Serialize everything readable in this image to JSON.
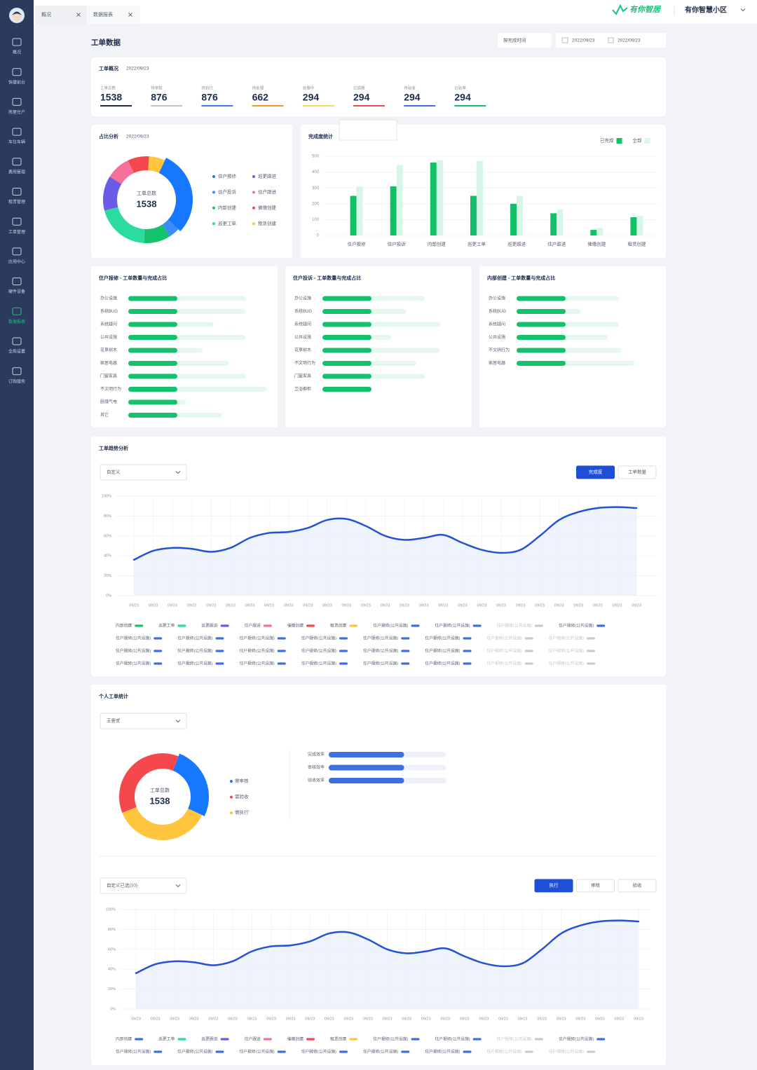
{
  "tabs": [
    "概况",
    "数据报表"
  ],
  "brand": {
    "logo": "有你智居",
    "community": "有你智慧小区"
  },
  "sidebar": {
    "items": [
      "概况",
      "快捷前台",
      "房屋住户",
      "车位车辆",
      "费用管理",
      "租赁管理",
      "工单管理",
      "应用中心",
      "硬件设备",
      "数据报表",
      "全局设置",
      "订购服务"
    ],
    "active": 9
  },
  "header": {
    "title": "工单数据",
    "filter": "按完成时间",
    "date_from": "2022/09/23",
    "date_to": "2022/09/23"
  },
  "overview": {
    "title": "工单概况",
    "date": "2022/09/23",
    "stats": [
      {
        "label": "工单总数",
        "value": 1538,
        "color": "#1f2d4d"
      },
      {
        "label": "待审核",
        "value": 876,
        "color": "#b8c4d6"
      },
      {
        "label": "待执行",
        "value": 876,
        "color": "#3d7cf0"
      },
      {
        "label": "待处理",
        "value": 662,
        "color": "#f59a23"
      },
      {
        "label": "处理中",
        "value": 294,
        "color": "#ffd666"
      },
      {
        "label": "已逾期",
        "value": 294,
        "color": "#f5484d"
      },
      {
        "label": "待验收",
        "value": 294,
        "color": "#3d6fe0"
      },
      {
        "label": "已验单",
        "value": 294,
        "color": "#13c26b"
      }
    ]
  },
  "share": {
    "title": "占比分析",
    "date": "2022/09/23",
    "center_label": "工单总数",
    "center_value": 1538,
    "chart": {
      "type": "donut",
      "categories": [
        "住户报修",
        "住户投诉",
        "内部创建",
        "巡更工单",
        "巡更跟进",
        "住户跟进",
        "催缴创建",
        "租赁创建"
      ],
      "values": [
        30,
        4,
        10,
        20,
        13,
        9,
        8,
        6
      ],
      "colors": [
        "#1677ff",
        "#3c8df5",
        "#14c26b",
        "#2bdba0",
        "#6b5ce7",
        "#f5719a",
        "#f5484d",
        "#ffc53d"
      ]
    }
  },
  "completion": {
    "type": "bar",
    "title": "完成度统计",
    "categories": [
      "住户报修",
      "住户投诉",
      "内部创建",
      "巡更工单",
      "巡更跟进",
      "住户跟进",
      "催缴创建",
      "租赁创建"
    ],
    "series": [
      {
        "name": "已完成",
        "color": "#12c067",
        "values": [
          250,
          310,
          460,
          250,
          200,
          140,
          35,
          115
        ]
      },
      {
        "name": "全部",
        "color": "#d8f6e7",
        "values": [
          310,
          445,
          475,
          470,
          250,
          165,
          50,
          125
        ]
      }
    ],
    "ylim": [
      0,
      500
    ],
    "yticks": [
      0,
      100,
      200,
      300,
      400,
      500
    ],
    "grid": true,
    "legend": "top-right"
  },
  "progress_panels": [
    {
      "type": "progress",
      "title": "住户报修 - 工单数量与完成占比",
      "xlim": [
        0,
        100
      ],
      "color": "#14c26b",
      "track_color": "#e6f8ee",
      "categories": [
        "办公设施",
        "系统BUG",
        "系统疑问",
        "公共设施",
        "花草树木",
        "家居电器",
        "门窗家具",
        "不文明行为",
        "厨煤气电",
        "其它"
      ],
      "completed": [
        35,
        35,
        35,
        35,
        35,
        35,
        35,
        35,
        35,
        35
      ],
      "total": [
        84,
        84,
        61,
        84,
        53,
        72,
        84,
        99,
        41,
        67
      ]
    },
    {
      "type": "progress",
      "title": "住户投诉 - 工单数量与完成占比",
      "xlim": [
        0,
        100
      ],
      "color": "#14c26b",
      "track_color": "#e6f8ee",
      "categories": [
        "办公设施",
        "系统BUG",
        "系统疑问",
        "公共设施",
        "花草树木",
        "不文明行为",
        "门窗家具",
        "卫浴橱柜"
      ],
      "completed": [
        35,
        35,
        35,
        35,
        35,
        35,
        35,
        35
      ],
      "total": [
        73,
        60,
        84,
        49,
        84,
        67,
        73,
        35
      ]
    },
    {
      "type": "progress",
      "title": "内部创建 - 工单数量与完成占比",
      "xlim": [
        0,
        100
      ],
      "color": "#14c26b",
      "track_color": "#e6f8ee",
      "categories": [
        "办公设施",
        "系统BUG",
        "系统疑问",
        "公共设施",
        "不文明行为",
        "家居电器"
      ],
      "completed": [
        35,
        35,
        35,
        35,
        35,
        35
      ],
      "total": [
        73,
        46,
        73,
        65,
        75,
        84
      ]
    }
  ],
  "trend": {
    "title": "工单趋势分析",
    "dropdown": "自定义",
    "buttons": [
      "完成度",
      "工单数量"
    ],
    "active_button": 0,
    "chart": {
      "type": "area",
      "color": "#2451d6",
      "fill": "#edf2fc",
      "categories": [
        "09/23",
        "09/23",
        "09/23",
        "09/23",
        "09/23",
        "09/23",
        "09/23",
        "09/23",
        "09/23",
        "09/23",
        "09/23",
        "09/23",
        "09/23",
        "09/23",
        "09/23",
        "09/23",
        "09/23",
        "09/23",
        "09/23",
        "09/23",
        "09/23",
        "09/23",
        "09/23",
        "09/23",
        "09/23",
        "09/23",
        "09/23"
      ],
      "values": [
        36,
        45,
        48,
        47,
        44,
        48,
        58,
        63,
        64,
        68,
        76,
        77,
        70,
        60,
        56,
        58,
        61,
        53,
        46,
        43,
        46,
        60,
        76,
        84,
        88,
        89,
        88
      ],
      "ylim": [
        0,
        100
      ],
      "yticks": [
        {
          "value": 0,
          "label": "0%"
        },
        {
          "value": 20,
          "label": "20%"
        },
        {
          "value": 40,
          "label": "40%"
        },
        {
          "value": 60,
          "label": "60%"
        },
        {
          "value": 80,
          "label": "80%"
        },
        {
          "value": 100,
          "label": "100%"
        }
      ],
      "grid": true
    },
    "legend": [
      [
        {
          "name": "内部创建",
          "color": "#14c26b"
        },
        {
          "name": "巡更工单",
          "color": "#2bdba0"
        },
        {
          "name": "巡更跟进",
          "color": "#6b5ce7"
        },
        {
          "name": "住户跟进",
          "color": "#f5719a"
        },
        {
          "name": "催缴创建",
          "color": "#f5484d"
        },
        {
          "name": "租赁创建",
          "color": "#ffc53d"
        },
        {
          "name": "住户报修(公共设施)",
          "color": "#3d6fe0"
        },
        {
          "name": "住户报修(公共设施)",
          "color": "#3d6fe0"
        },
        {
          "name": "住户报修(公共设施)",
          "color": "#c8cbd2",
          "hidden": true
        },
        {
          "name": "住户报修(公共设施)",
          "color": "#3d6fe0"
        }
      ],
      [
        {
          "name": "住户报修(公共设施)",
          "color": "#3d6fe0"
        },
        {
          "name": "住户报修(公共设施)",
          "color": "#3d6fe0"
        },
        {
          "name": "住户报修(公共设施)",
          "color": "#3d6fe0"
        },
        {
          "name": "住户报修(公共设施)",
          "color": "#3d6fe0"
        },
        {
          "name": "住户报修(公共设施)",
          "color": "#3d6fe0"
        },
        {
          "name": "住户报修(公共设施)",
          "color": "#3d6fe0"
        },
        {
          "name": "住户报修(公共设施)",
          "color": "#c8cbd2",
          "hidden": true
        },
        {
          "name": "住户报修(公共设施)",
          "color": "#c8cbd2",
          "hidden": true
        }
      ],
      [
        {
          "name": "住户报修(公共设施)",
          "color": "#3d6fe0"
        },
        {
          "name": "住户报修(公共设施)",
          "color": "#3d6fe0"
        },
        {
          "name": "住户报修(公共设施)",
          "color": "#3d6fe0"
        },
        {
          "name": "住户报修(公共设施)",
          "color": "#3d6fe0"
        },
        {
          "name": "住户报修(公共设施)",
          "color": "#3d6fe0"
        },
        {
          "name": "住户报修(公共设施)",
          "color": "#3d6fe0"
        },
        {
          "name": "住户报修(公共设施)",
          "color": "#c8cbd2",
          "hidden": true
        },
        {
          "name": "住户报修(公共设施)",
          "color": "#c8cbd2",
          "hidden": true
        }
      ],
      [
        {
          "name": "住户报修(公共设施)",
          "color": "#3d6fe0"
        },
        {
          "name": "住户报修(公共设施)",
          "color": "#3d6fe0"
        },
        {
          "name": "住户报修(公共设施)",
          "color": "#3d6fe0"
        },
        {
          "name": "住户报修(公共设施)",
          "color": "#3d6fe0"
        },
        {
          "name": "住户报修(公共设施)",
          "color": "#3d6fe0"
        },
        {
          "name": "住户报修(公共设施)",
          "color": "#3d6fe0"
        },
        {
          "name": "住户报修(公共设施)",
          "color": "#c8cbd2",
          "hidden": true
        },
        {
          "name": "住户报修(公共设施)",
          "color": "#c8cbd2",
          "hidden": true
        }
      ]
    ]
  },
  "personal": {
    "title": "个人工单统计",
    "dropdown": "王壹贰",
    "donut": {
      "type": "donut",
      "center_label": "工单总数",
      "center_value": 1538,
      "categories": [
        "需审核",
        "需验收",
        "需执行"
      ],
      "values": [
        26,
        37,
        37
      ],
      "colors": [
        "#1677ff",
        "#f5484d",
        "#ffc53d"
      ]
    },
    "efficiency": {
      "type": "progress",
      "categories": [
        "完成效率",
        "审核效率",
        "验收效率"
      ],
      "values": [
        64,
        64,
        64
      ],
      "xlim": [
        0,
        100
      ],
      "color": "#3d6fe0",
      "track_color": "#eef1f8"
    },
    "trend": {
      "dropdown": "自定义已选(10)",
      "buttons": [
        "执行",
        "审核",
        "验收"
      ],
      "active_button": 0,
      "chart": {
        "type": "area",
        "color": "#2451d6",
        "fill": "#edf2fc",
        "categories": [
          "09/23",
          "09/23",
          "09/23",
          "09/23",
          "09/23",
          "09/23",
          "09/23",
          "09/23",
          "09/23",
          "09/23",
          "09/23",
          "09/23",
          "09/23",
          "09/23",
          "09/23",
          "09/23",
          "09/23",
          "09/23",
          "09/23",
          "09/23",
          "09/23",
          "09/23",
          "09/23",
          "09/23",
          "09/23",
          "09/23",
          "09/23"
        ],
        "values": [
          36,
          45,
          48,
          47,
          44,
          48,
          58,
          63,
          64,
          68,
          76,
          77,
          70,
          60,
          56,
          58,
          61,
          53,
          46,
          43,
          46,
          60,
          76,
          84,
          88,
          89,
          88
        ],
        "ylim": [
          0,
          100
        ],
        "yticks": [
          {
            "value": 0,
            "label": "0%"
          },
          {
            "value": 20,
            "label": "20%"
          },
          {
            "value": 40,
            "label": "40%"
          },
          {
            "value": 60,
            "label": "60%"
          },
          {
            "value": 80,
            "label": "80%"
          },
          {
            "value": 100,
            "label": "100%"
          }
        ],
        "grid": true
      },
      "legend": [
        [
          {
            "name": "内部创建",
            "color": "#3d6fe0"
          },
          {
            "name": "巡更工单",
            "color": "#2bdba0"
          },
          {
            "name": "巡更跟进",
            "color": "#6b5ce7"
          },
          {
            "name": "住户跟进",
            "color": "#f5719a"
          },
          {
            "name": "催缴创建",
            "color": "#f5484d"
          },
          {
            "name": "租赁创建",
            "color": "#ffc53d"
          },
          {
            "name": "住户报修(公共设施)",
            "color": "#3d6fe0"
          },
          {
            "name": "住户报修(公共设施)",
            "color": "#3d6fe0"
          },
          {
            "name": "住户报修(公共设施)",
            "color": "#c8cbd2",
            "hidden": true
          },
          {
            "name": "住户报修(公共设施)",
            "color": "#3d6fe0"
          }
        ],
        [
          {
            "name": "住户报修(公共设施)",
            "color": "#3d6fe0"
          },
          {
            "name": "住户报修(公共设施)",
            "color": "#3d6fe0"
          },
          {
            "name": "住户报修(公共设施)",
            "color": "#3d6fe0"
          },
          {
            "name": "住户报修(公共设施)",
            "color": "#3d6fe0"
          },
          {
            "name": "住户报修(公共设施)",
            "color": "#3d6fe0"
          },
          {
            "name": "住户报修(公共设施)",
            "color": "#3d6fe0"
          },
          {
            "name": "住户报修(公共设施)",
            "color": "#c8cbd2",
            "hidden": true
          },
          {
            "name": "住户报修(公共设施)",
            "color": "#c8cbd2",
            "hidden": true
          }
        ]
      ]
    }
  }
}
